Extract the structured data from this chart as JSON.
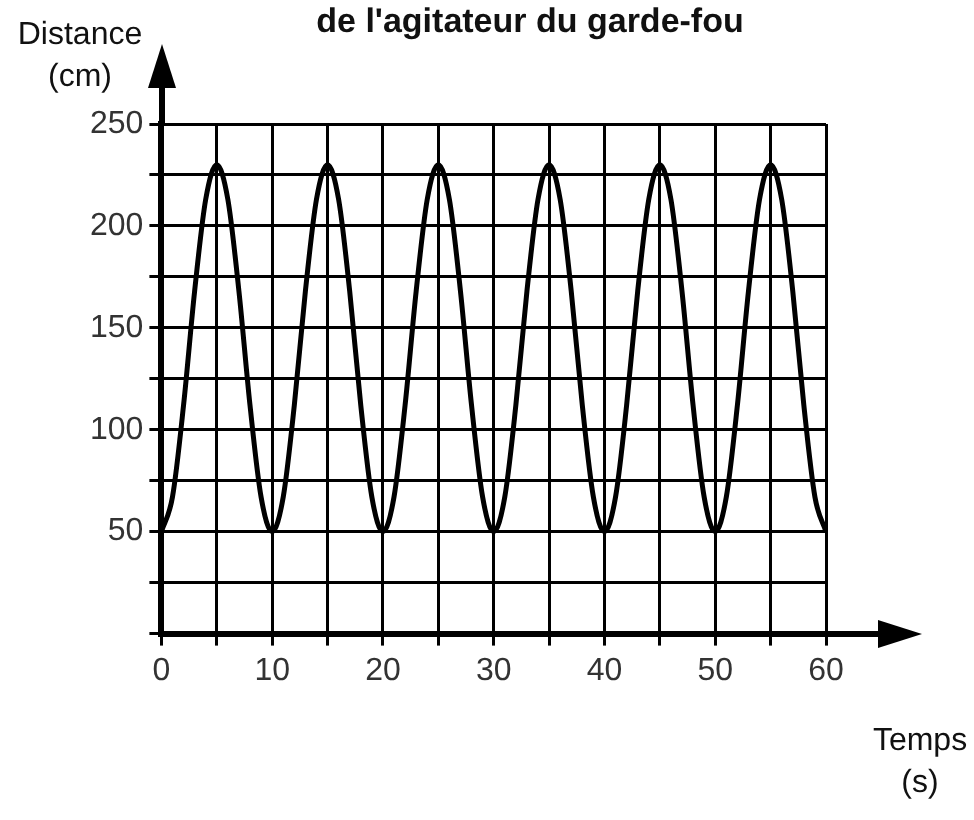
{
  "chart_data": {
    "type": "line",
    "title": "de l'agitateur du garde-fou",
    "xlabel": "Temps\n(s)",
    "ylabel": "Distance\n(cm)",
    "x": [
      0,
      1,
      2,
      3,
      4,
      5,
      6,
      7,
      8,
      9,
      10,
      11,
      12,
      13,
      14,
      15,
      16,
      17,
      18,
      19,
      20,
      21,
      22,
      23,
      24,
      25,
      26,
      27,
      28,
      29,
      30,
      31,
      32,
      33,
      34,
      35,
      36,
      37,
      38,
      39,
      40,
      41,
      42,
      43,
      44,
      45,
      46,
      47,
      48,
      49,
      50,
      51,
      52,
      53,
      54,
      55,
      56,
      57,
      58,
      59,
      60
    ],
    "series": [
      {
        "color": "#000000",
        "values": [
          50,
          67,
          112,
          168,
          213,
          230,
          213,
          168,
          112,
          67,
          50,
          67,
          112,
          168,
          213,
          230,
          213,
          168,
          112,
          67,
          50,
          67,
          112,
          168,
          213,
          230,
          213,
          168,
          112,
          67,
          50,
          67,
          112,
          168,
          213,
          230,
          213,
          168,
          112,
          67,
          50,
          67,
          112,
          168,
          213,
          230,
          213,
          168,
          112,
          67,
          50,
          67,
          112,
          168,
          213,
          230,
          213,
          168,
          112,
          67,
          50
        ]
      }
    ],
    "xlim": [
      0,
      60
    ],
    "ylim": [
      0,
      250
    ],
    "xticks": [
      0,
      {
        "value": 5,
        "label": null
      },
      10,
      {
        "value": 15,
        "label": null
      },
      20,
      {
        "value": 25,
        "label": null
      },
      30,
      {
        "value": 35,
        "label": null
      },
      40,
      {
        "value": 45,
        "label": null
      },
      50,
      {
        "value": 55,
        "label": null
      },
      60
    ],
    "yticks": [
      {
        "value": 0,
        "label": null
      },
      {
        "value": 25,
        "label": null
      },
      50,
      {
        "value": 75,
        "label": null
      },
      100,
      {
        "value": 125,
        "label": null
      },
      150,
      {
        "value": 175,
        "label": null
      },
      200,
      {
        "value": 225,
        "label": null
      },
      250
    ],
    "grid": true,
    "legend": false,
    "marker": "none",
    "line_style": "solid"
  }
}
